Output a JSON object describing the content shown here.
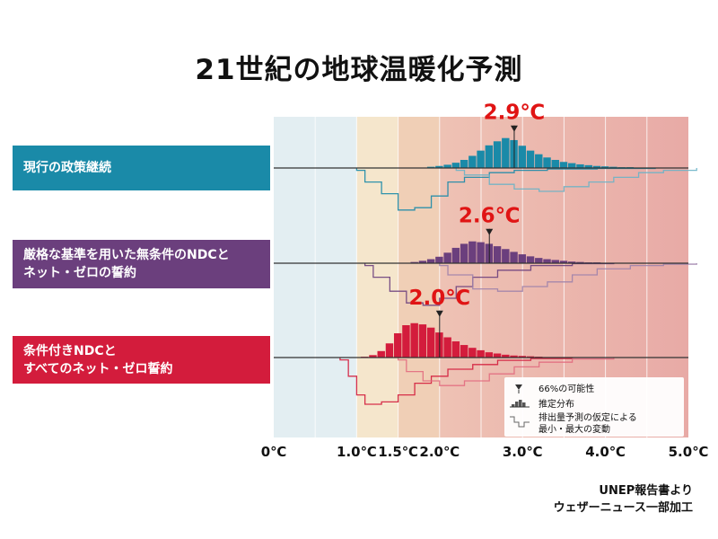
{
  "title": "21世紀の地球温暖化予測",
  "source_lines": [
    "UNEP報告書より",
    "ウェザーニュース一部加工"
  ],
  "colors": {
    "band_cool": "#e3eef2",
    "band_15": "#f5e6cc",
    "band_20": "#f0cfb6",
    "band_hot": "#e8aaa6",
    "current": "#1a8aa8",
    "strict": "#6b3f7d",
    "conditional": "#d31c3c"
  },
  "legend": {
    "likely": "66%の可能性",
    "distribution": "推定分布",
    "range_line1": "排出量予測の仮定による",
    "range_line2": "最小・最大の変動"
  },
  "chart_data": {
    "type": "histogram",
    "x_unit": "℃",
    "xlim": [
      0,
      5
    ],
    "x_ticks": [
      0,
      1.0,
      1.5,
      2.0,
      3.0,
      4.0,
      5.0
    ],
    "x_tick_labels": [
      "0℃",
      "1.0℃",
      "1.5℃",
      "2.0℃",
      "3.0℃",
      "4.0℃",
      "5.0℃"
    ],
    "grid": true,
    "series": [
      {
        "name": "現行の政策継続",
        "name_lines": [
          "現行の政策継続"
        ],
        "color": "#1a8aa8",
        "central_estimate": 2.9,
        "central_label": "2.9℃",
        "bins": [
          [
            1.9,
            0.03
          ],
          [
            2.0,
            0.05
          ],
          [
            2.1,
            0.08
          ],
          [
            2.2,
            0.13
          ],
          [
            2.3,
            0.2
          ],
          [
            2.4,
            0.3
          ],
          [
            2.5,
            0.43
          ],
          [
            2.6,
            0.56
          ],
          [
            2.7,
            0.66
          ],
          [
            2.8,
            0.74
          ],
          [
            2.9,
            0.69
          ],
          [
            3.0,
            0.55
          ],
          [
            3.1,
            0.43
          ],
          [
            3.2,
            0.34
          ],
          [
            3.3,
            0.26
          ],
          [
            3.4,
            0.2
          ],
          [
            3.5,
            0.15
          ],
          [
            3.6,
            0.12
          ],
          [
            3.7,
            0.09
          ],
          [
            3.8,
            0.07
          ],
          [
            3.9,
            0.05
          ],
          [
            4.0,
            0.04
          ],
          [
            4.1,
            0.03
          ],
          [
            4.2,
            0.02
          ],
          [
            4.3,
            0.02
          ],
          [
            4.4,
            0.01
          ],
          [
            4.5,
            0.01
          ]
        ],
        "min_variation": [
          [
            1.0,
            0.05
          ],
          [
            1.2,
            0.3
          ],
          [
            1.4,
            0.55
          ],
          [
            1.5,
            0.9
          ],
          [
            1.6,
            0.9
          ],
          [
            1.8,
            0.85
          ],
          [
            2.0,
            0.6
          ],
          [
            2.2,
            0.3
          ],
          [
            2.5,
            0.2
          ],
          [
            2.8,
            0.1
          ],
          [
            3.2,
            0.05
          ],
          [
            3.8,
            0.02
          ],
          [
            4.5,
            0.01
          ]
        ],
        "max_variation": [
          [
            2.2,
            0.05
          ],
          [
            2.5,
            0.15
          ],
          [
            2.8,
            0.35
          ],
          [
            3.1,
            0.45
          ],
          [
            3.4,
            0.5
          ],
          [
            3.7,
            0.4
          ],
          [
            4.0,
            0.3
          ],
          [
            4.3,
            0.2
          ],
          [
            4.6,
            0.1
          ],
          [
            5.0,
            0.05
          ]
        ]
      },
      {
        "name": "厳格な基準を用いた無条件のNDCとネット・ゼロの誓約",
        "name_lines": [
          "厳格な基準を用いた無条件のNDCと",
          "ネット・ゼロの誓約"
        ],
        "color": "#6b3f7d",
        "central_estimate": 2.6,
        "central_label": "2.6℃",
        "bins": [
          [
            1.7,
            0.03
          ],
          [
            1.8,
            0.06
          ],
          [
            1.9,
            0.1
          ],
          [
            2.0,
            0.16
          ],
          [
            2.1,
            0.26
          ],
          [
            2.2,
            0.38
          ],
          [
            2.3,
            0.48
          ],
          [
            2.4,
            0.54
          ],
          [
            2.5,
            0.52
          ],
          [
            2.6,
            0.48
          ],
          [
            2.7,
            0.42
          ],
          [
            2.8,
            0.35
          ],
          [
            2.9,
            0.28
          ],
          [
            3.0,
            0.22
          ],
          [
            3.1,
            0.17
          ],
          [
            3.2,
            0.13
          ],
          [
            3.3,
            0.1
          ],
          [
            3.4,
            0.08
          ],
          [
            3.5,
            0.06
          ],
          [
            3.6,
            0.04
          ],
          [
            3.7,
            0.03
          ],
          [
            3.8,
            0.02
          ],
          [
            3.9,
            0.02
          ],
          [
            4.0,
            0.01
          ]
        ],
        "min_variation": [
          [
            1.1,
            0.05
          ],
          [
            1.3,
            0.3
          ],
          [
            1.5,
            0.6
          ],
          [
            1.7,
            0.85
          ],
          [
            1.9,
            0.9
          ],
          [
            2.1,
            0.75
          ],
          [
            2.3,
            0.5
          ],
          [
            2.6,
            0.3
          ],
          [
            3.0,
            0.15
          ],
          [
            3.5,
            0.05
          ],
          [
            4.0,
            0.01
          ]
        ],
        "max_variation": [
          [
            2.0,
            0.05
          ],
          [
            2.3,
            0.25
          ],
          [
            2.6,
            0.55
          ],
          [
            2.9,
            0.6
          ],
          [
            3.2,
            0.5
          ],
          [
            3.5,
            0.4
          ],
          [
            3.8,
            0.25
          ],
          [
            4.2,
            0.12
          ],
          [
            4.6,
            0.05
          ],
          [
            5.0,
            0.02
          ]
        ]
      },
      {
        "name": "条件付きNDCとすべてのネット・ゼロ誓約",
        "name_lines": [
          "条件付きNDCと",
          "すべてのネット・ゼロ誓約"
        ],
        "color": "#d31c3c",
        "central_estimate": 2.0,
        "central_label": "2.0℃",
        "bins": [
          [
            1.1,
            0.02
          ],
          [
            1.2,
            0.06
          ],
          [
            1.3,
            0.16
          ],
          [
            1.4,
            0.35
          ],
          [
            1.5,
            0.6
          ],
          [
            1.6,
            0.8
          ],
          [
            1.7,
            0.85
          ],
          [
            1.8,
            0.82
          ],
          [
            1.9,
            0.74
          ],
          [
            2.0,
            0.62
          ],
          [
            2.1,
            0.5
          ],
          [
            2.2,
            0.4
          ],
          [
            2.3,
            0.31
          ],
          [
            2.4,
            0.24
          ],
          [
            2.5,
            0.18
          ],
          [
            2.6,
            0.13
          ],
          [
            2.7,
            0.1
          ],
          [
            2.8,
            0.07
          ],
          [
            2.9,
            0.05
          ],
          [
            3.0,
            0.04
          ],
          [
            3.1,
            0.03
          ],
          [
            3.2,
            0.02
          ],
          [
            3.3,
            0.01
          ]
        ],
        "min_variation": [
          [
            0.8,
            0.05
          ],
          [
            0.9,
            0.4
          ],
          [
            1.0,
            0.8
          ],
          [
            1.2,
            1.0
          ],
          [
            1.4,
            0.95
          ],
          [
            1.6,
            0.8
          ],
          [
            1.8,
            0.55
          ],
          [
            2.0,
            0.4
          ],
          [
            2.3,
            0.25
          ],
          [
            2.6,
            0.15
          ],
          [
            3.0,
            0.06
          ],
          [
            3.5,
            0.02
          ]
        ],
        "max_variation": [
          [
            1.5,
            0.05
          ],
          [
            1.7,
            0.3
          ],
          [
            1.9,
            0.5
          ],
          [
            2.2,
            0.6
          ],
          [
            2.5,
            0.5
          ],
          [
            2.8,
            0.35
          ],
          [
            3.1,
            0.2
          ],
          [
            3.5,
            0.1
          ],
          [
            4.0,
            0.03
          ]
        ]
      }
    ]
  }
}
